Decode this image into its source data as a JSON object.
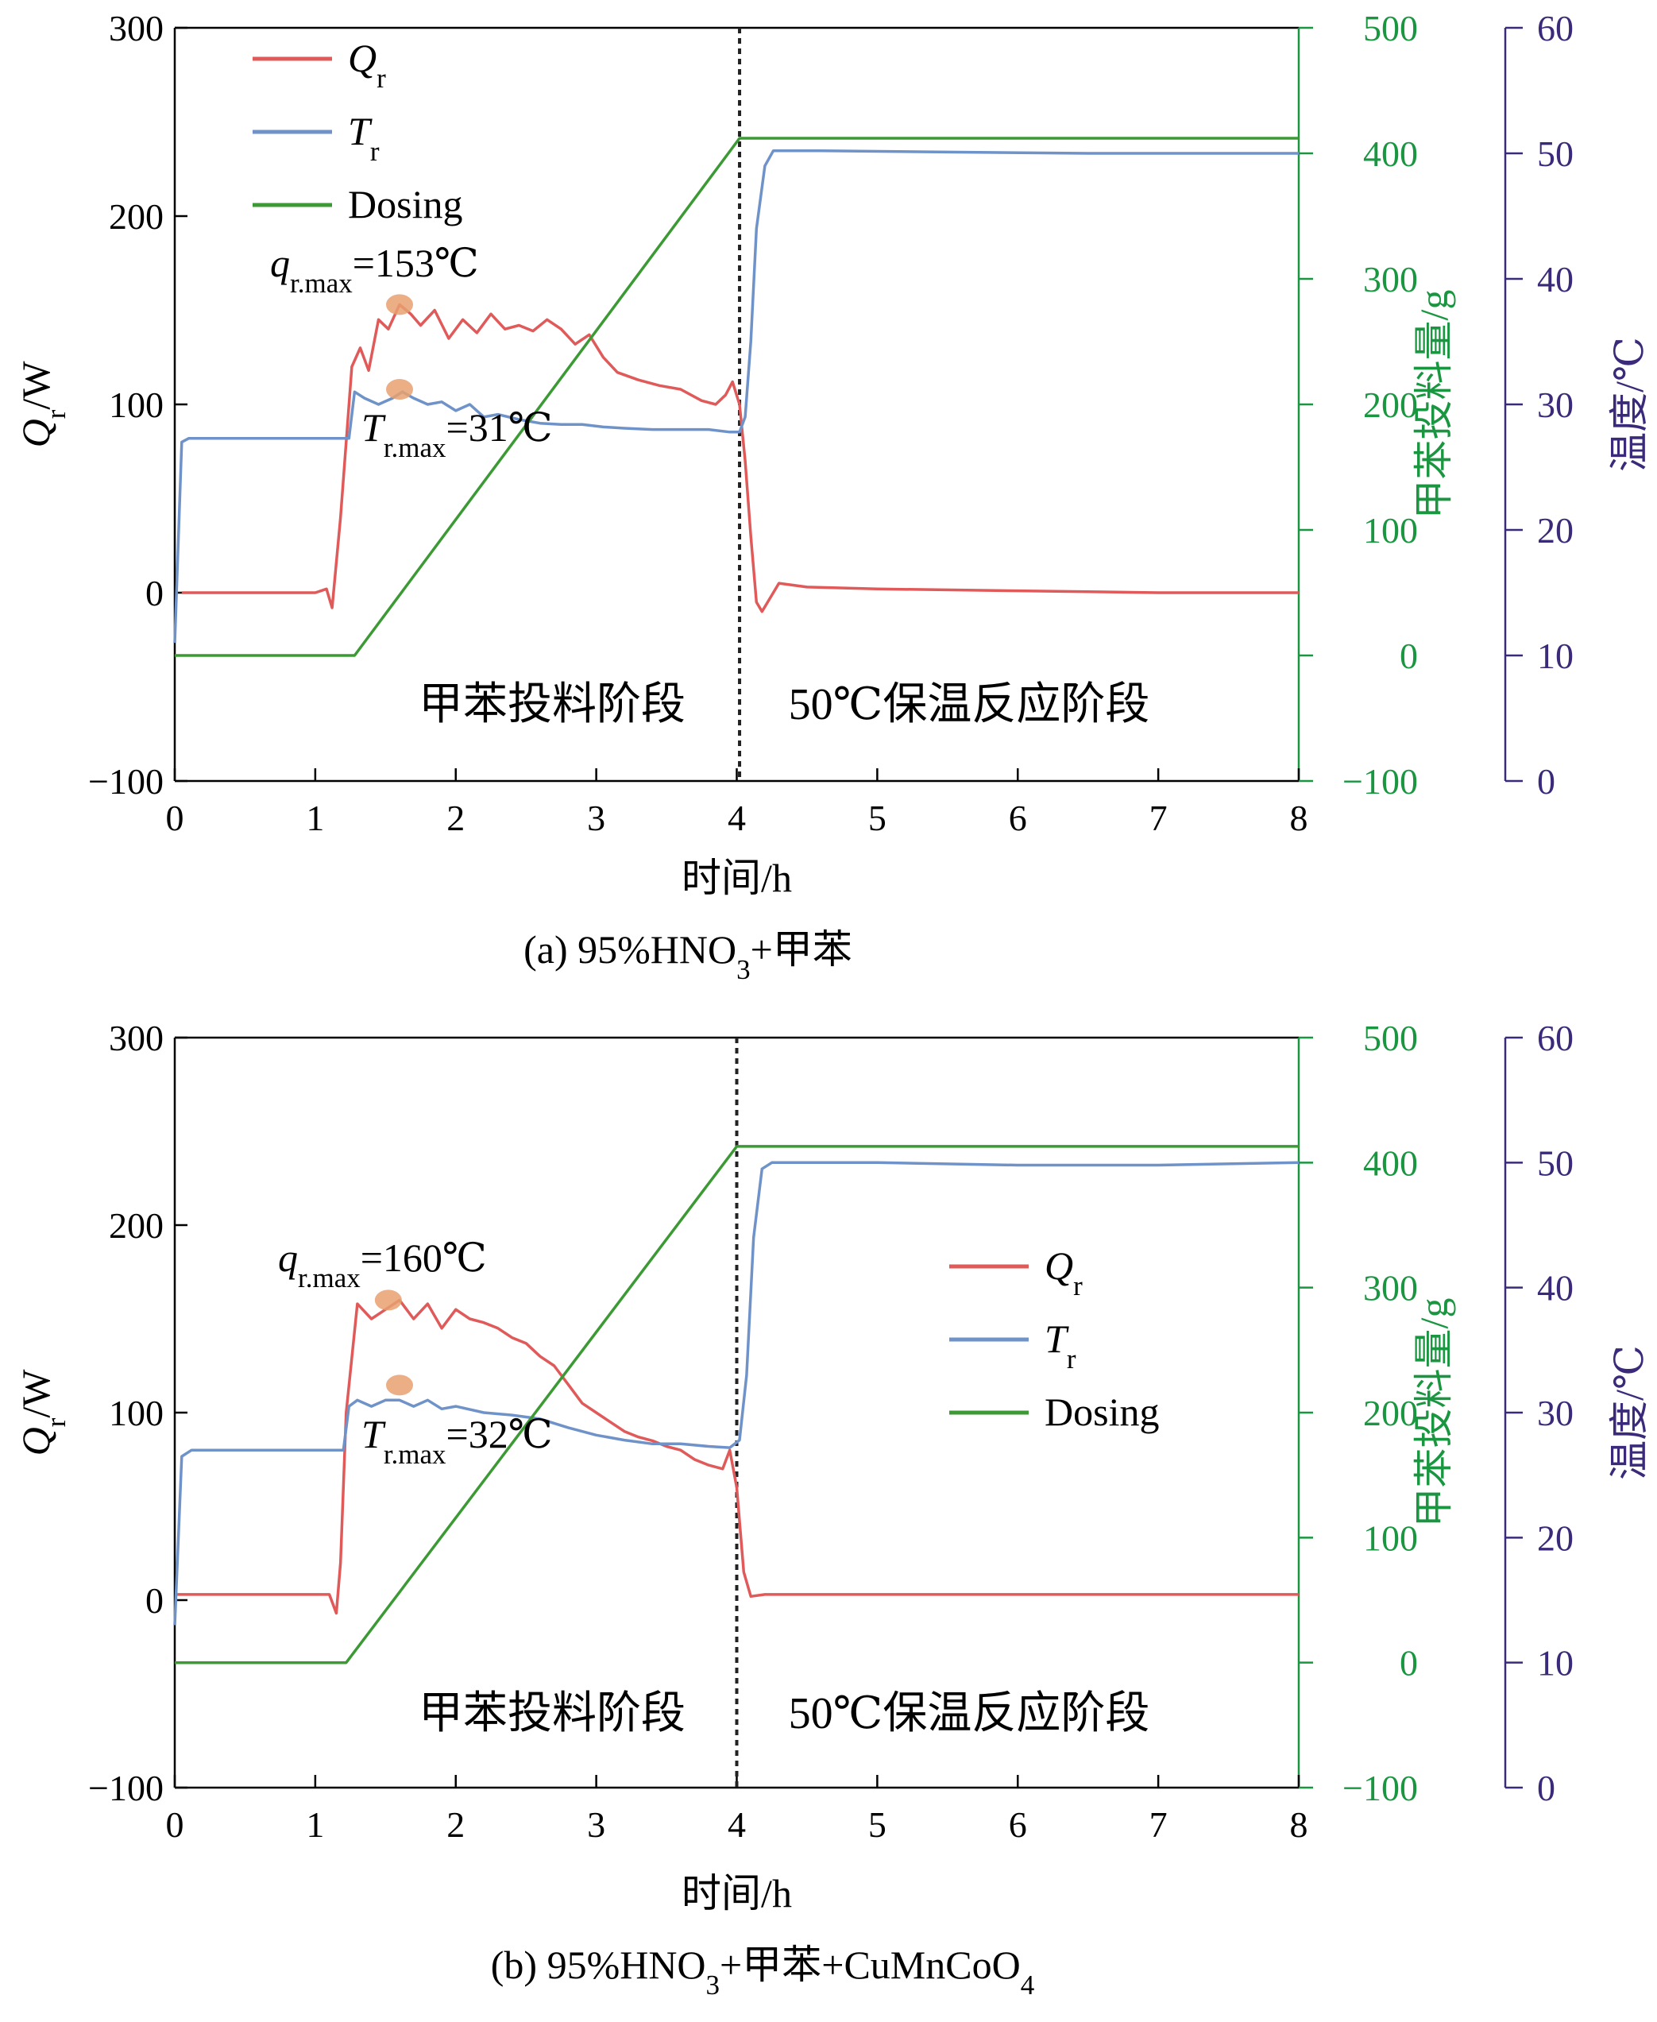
{
  "chart_data": [
    {
      "panel": "a",
      "type": "line",
      "caption_parts": [
        "(a) 95%HNO",
        "3",
        "+甲苯"
      ],
      "xlabel": "时间/h",
      "xlim": [
        0,
        8
      ],
      "xticks": [
        "0",
        "1",
        "2",
        "3",
        "4",
        "5",
        "6",
        "7",
        "8"
      ],
      "axes": {
        "left": {
          "label": "Q",
          "label_sub": "r",
          "label_tail": "/W",
          "lim": [
            -100,
            300
          ],
          "ticks": [
            "−100",
            "0",
            "100",
            "200",
            "300"
          ],
          "color": "#000000"
        },
        "right1": {
          "label": "甲苯投料量/g",
          "lim": [
            -100,
            500
          ],
          "ticks": [
            "−100",
            "0",
            "100",
            "200",
            "300",
            "400",
            "500"
          ],
          "color": "#1a9641"
        },
        "right2": {
          "label": "温度/℃",
          "lim": [
            0,
            60
          ],
          "ticks": [
            "0",
            "10",
            "20",
            "30",
            "40",
            "50",
            "60"
          ],
          "color": "#3b2a7a"
        }
      },
      "legend": {
        "position": "top-left",
        "entries": [
          {
            "text": "Q",
            "sub": "r",
            "color": "#e05a5a"
          },
          {
            "text": "T",
            "sub": "r",
            "color": "#6f93c9"
          },
          {
            "text": "Dosing",
            "sub": "",
            "color": "#3c9a35"
          }
        ]
      },
      "annotations": [
        {
          "main": "q",
          "sub": "r.max",
          "tail": "=153℃"
        },
        {
          "main": "T",
          "sub": "r.max",
          "tail": "=31℃"
        }
      ],
      "stage_labels": [
        "甲苯投料阶段",
        "50℃保温反应阶段"
      ],
      "vline_x": 4.02,
      "series": [
        {
          "name": "Q_r",
          "axis": "left",
          "color": "#e05a5a",
          "x": [
            0.05,
            1.0,
            1.08,
            1.12,
            1.18,
            1.26,
            1.32,
            1.38,
            1.45,
            1.52,
            1.6,
            1.68,
            1.75,
            1.85,
            1.95,
            2.05,
            2.15,
            2.25,
            2.35,
            2.45,
            2.55,
            2.65,
            2.75,
            2.85,
            2.95,
            3.05,
            3.15,
            3.3,
            3.45,
            3.6,
            3.75,
            3.85,
            3.92,
            3.97,
            4.02,
            4.06,
            4.1,
            4.14,
            4.18,
            4.22,
            4.3,
            4.5,
            5.0,
            6.0,
            7.0,
            8.0
          ],
          "y": [
            0,
            0,
            2,
            -8,
            40,
            120,
            130,
            118,
            145,
            140,
            153,
            148,
            142,
            150,
            135,
            145,
            138,
            148,
            140,
            142,
            139,
            145,
            140,
            132,
            137,
            125,
            117,
            113,
            110,
            108,
            102,
            100,
            105,
            112,
            100,
            70,
            30,
            -5,
            -10,
            -5,
            5,
            3,
            2,
            1,
            0,
            0
          ]
        },
        {
          "name": "T_r",
          "axis": "right2",
          "color": "#6f93c9",
          "x": [
            0,
            0.05,
            0.1,
            0.3,
            0.6,
            1.0,
            1.24,
            1.28,
            1.35,
            1.45,
            1.55,
            1.62,
            1.7,
            1.8,
            1.9,
            2.0,
            2.1,
            2.2,
            2.3,
            2.45,
            2.6,
            2.75,
            2.9,
            3.05,
            3.2,
            3.4,
            3.6,
            3.8,
            3.95,
            4.02,
            4.06,
            4.1,
            4.14,
            4.2,
            4.26,
            4.35,
            4.6,
            5.5,
            6.5,
            7.5,
            8.0
          ],
          "y": [
            11,
            27,
            27.3,
            27.3,
            27.3,
            27.3,
            27.3,
            31,
            30.5,
            30,
            30.5,
            31,
            30.5,
            30,
            30.2,
            29.5,
            30,
            29,
            29.2,
            28.8,
            28.5,
            28.4,
            28.4,
            28.2,
            28.1,
            28,
            28,
            28,
            27.8,
            27.8,
            29,
            35,
            44,
            49,
            50.2,
            50.2,
            50.2,
            50.1,
            50,
            50,
            50
          ]
        },
        {
          "name": "Dosing",
          "axis": "right1",
          "color": "#3c9a35",
          "x": [
            0,
            1.28,
            4.02,
            8.0
          ],
          "y": [
            0,
            0,
            412,
            412
          ]
        }
      ]
    },
    {
      "panel": "b",
      "type": "line",
      "caption_parts": [
        "(b) 95%HNO",
        "3",
        "+甲苯+CuMnCoO",
        "4"
      ],
      "xlabel": "时间/h",
      "xlim": [
        0,
        8
      ],
      "xticks": [
        "0",
        "1",
        "2",
        "3",
        "4",
        "5",
        "6",
        "7",
        "8"
      ],
      "axes": {
        "left": {
          "label": "Q",
          "label_sub": "r",
          "label_tail": "/W",
          "lim": [
            -100,
            300
          ],
          "ticks": [
            "−100",
            "0",
            "100",
            "200",
            "300"
          ],
          "color": "#000000"
        },
        "right1": {
          "label": "甲苯投料量/g",
          "lim": [
            -100,
            500
          ],
          "ticks": [
            "−100",
            "0",
            "100",
            "200",
            "300",
            "400",
            "500"
          ],
          "color": "#1a9641"
        },
        "right2": {
          "label": "温度/℃",
          "lim": [
            0,
            60
          ],
          "ticks": [
            "0",
            "10",
            "20",
            "30",
            "40",
            "50",
            "60"
          ],
          "color": "#3b2a7a"
        }
      },
      "legend": {
        "position": "center-right",
        "entries": [
          {
            "text": "Q",
            "sub": "r",
            "color": "#e05a5a"
          },
          {
            "text": "T",
            "sub": "r",
            "color": "#6f93c9"
          },
          {
            "text": "Dosing",
            "sub": "",
            "color": "#3c9a35"
          }
        ]
      },
      "annotations": [
        {
          "main": "q",
          "sub": "r.max",
          "tail": "=160℃"
        },
        {
          "main": "T",
          "sub": "r.max",
          "tail": "=32℃"
        }
      ],
      "stage_labels": [
        "甲苯投料阶段",
        "50℃保温反应阶段"
      ],
      "vline_x": 4.0,
      "series": [
        {
          "name": "Q_r",
          "axis": "left",
          "color": "#e05a5a",
          "x": [
            0,
            1.1,
            1.15,
            1.18,
            1.22,
            1.3,
            1.4,
            1.5,
            1.6,
            1.7,
            1.8,
            1.9,
            2.0,
            2.1,
            2.2,
            2.3,
            2.4,
            2.5,
            2.6,
            2.7,
            2.8,
            2.9,
            3.0,
            3.1,
            3.2,
            3.3,
            3.4,
            3.5,
            3.6,
            3.7,
            3.8,
            3.9,
            3.95,
            4.0,
            4.05,
            4.1,
            4.2,
            5.0,
            6.0,
            7.0,
            8.0
          ],
          "y": [
            3,
            3,
            -7,
            20,
            100,
            158,
            150,
            155,
            160,
            150,
            158,
            145,
            155,
            150,
            148,
            145,
            140,
            137,
            130,
            125,
            115,
            105,
            100,
            95,
            90,
            87,
            85,
            82,
            80,
            75,
            72,
            70,
            80,
            60,
            15,
            2,
            3,
            3,
            3,
            3,
            3
          ]
        },
        {
          "name": "T_r",
          "axis": "right2",
          "color": "#6f93c9",
          "x": [
            0,
            0.05,
            0.12,
            0.3,
            0.6,
            0.9,
            1.2,
            1.24,
            1.3,
            1.4,
            1.5,
            1.6,
            1.7,
            1.8,
            1.9,
            2.0,
            2.2,
            2.4,
            2.6,
            2.8,
            3.0,
            3.2,
            3.4,
            3.6,
            3.8,
            3.95,
            4.02,
            4.07,
            4.12,
            4.18,
            4.25,
            4.4,
            5.0,
            6.0,
            7.0,
            8.0
          ],
          "y": [
            13,
            26.5,
            27,
            27,
            27,
            27,
            27,
            30.5,
            31,
            30.5,
            31,
            31,
            30.5,
            31,
            30.3,
            30.5,
            30,
            29.8,
            29.5,
            28.8,
            28.2,
            27.8,
            27.5,
            27.5,
            27.3,
            27.2,
            27.8,
            33,
            44,
            49.5,
            50,
            50,
            50,
            49.8,
            49.8,
            50
          ]
        },
        {
          "name": "Dosing",
          "axis": "right1",
          "color": "#3c9a35",
          "x": [
            0,
            1.22,
            4.0,
            8.0
          ],
          "y": [
            0,
            0,
            413,
            413
          ]
        }
      ]
    }
  ]
}
